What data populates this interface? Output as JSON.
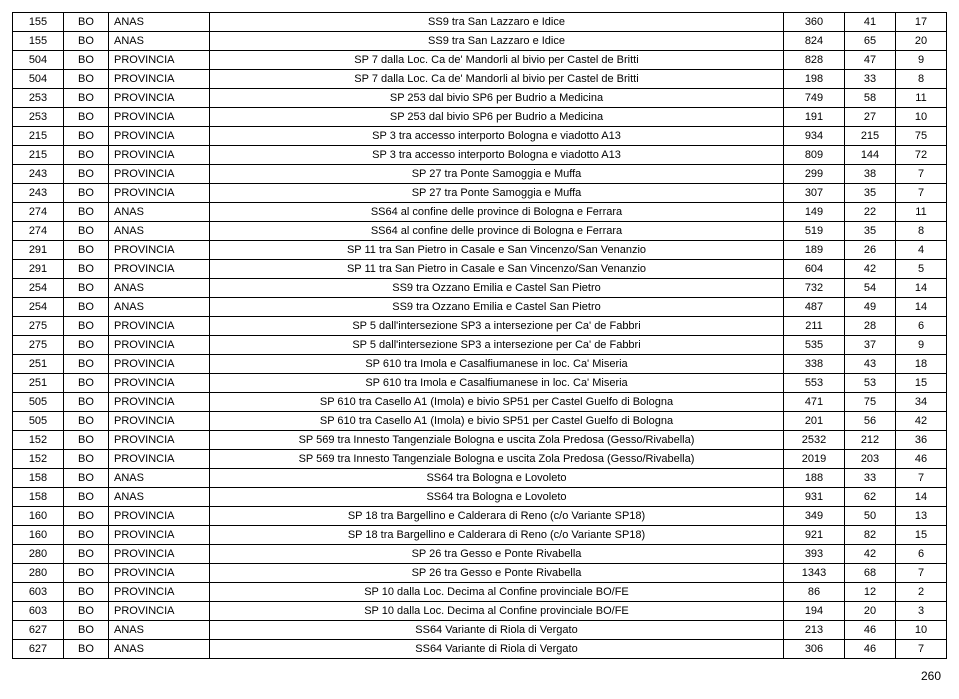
{
  "page_number": "260",
  "rows": [
    [
      "155",
      "BO",
      "ANAS",
      "SS9 tra San Lazzaro e Idice",
      "360",
      "41",
      "17"
    ],
    [
      "155",
      "BO",
      "ANAS",
      "SS9 tra San Lazzaro e Idice",
      "824",
      "65",
      "20"
    ],
    [
      "504",
      "BO",
      "PROVINCIA",
      "SP 7 dalla Loc. Ca de' Mandorli al bivio per Castel de Britti",
      "828",
      "47",
      "9"
    ],
    [
      "504",
      "BO",
      "PROVINCIA",
      "SP 7 dalla Loc. Ca de' Mandorli al bivio per Castel de Britti",
      "198",
      "33",
      "8"
    ],
    [
      "253",
      "BO",
      "PROVINCIA",
      "SP 253 dal bivio SP6 per Budrio a Medicina",
      "749",
      "58",
      "11"
    ],
    [
      "253",
      "BO",
      "PROVINCIA",
      "SP 253 dal bivio SP6 per Budrio a Medicina",
      "191",
      "27",
      "10"
    ],
    [
      "215",
      "BO",
      "PROVINCIA",
      "SP 3 tra accesso interporto Bologna e viadotto A13",
      "934",
      "215",
      "75"
    ],
    [
      "215",
      "BO",
      "PROVINCIA",
      "SP 3 tra accesso interporto Bologna e viadotto A13",
      "809",
      "144",
      "72"
    ],
    [
      "243",
      "BO",
      "PROVINCIA",
      "SP 27 tra Ponte Samoggia e Muffa",
      "299",
      "38",
      "7"
    ],
    [
      "243",
      "BO",
      "PROVINCIA",
      "SP 27 tra Ponte Samoggia e Muffa",
      "307",
      "35",
      "7"
    ],
    [
      "274",
      "BO",
      "ANAS",
      "SS64 al confine delle province di Bologna e Ferrara",
      "149",
      "22",
      "11"
    ],
    [
      "274",
      "BO",
      "ANAS",
      "SS64 al confine delle province di Bologna e Ferrara",
      "519",
      "35",
      "8"
    ],
    [
      "291",
      "BO",
      "PROVINCIA",
      "SP 11 tra San Pietro in Casale e San Vincenzo/San Venanzio",
      "189",
      "26",
      "4"
    ],
    [
      "291",
      "BO",
      "PROVINCIA",
      "SP 11 tra San Pietro in Casale e San Vincenzo/San Venanzio",
      "604",
      "42",
      "5"
    ],
    [
      "254",
      "BO",
      "ANAS",
      "SS9 tra Ozzano Emilia e Castel San Pietro",
      "732",
      "54",
      "14"
    ],
    [
      "254",
      "BO",
      "ANAS",
      "SS9 tra Ozzano Emilia e Castel San Pietro",
      "487",
      "49",
      "14"
    ],
    [
      "275",
      "BO",
      "PROVINCIA",
      "SP 5 dall'intersezione SP3 a intersezione per Ca' de Fabbri",
      "211",
      "28",
      "6"
    ],
    [
      "275",
      "BO",
      "PROVINCIA",
      "SP 5 dall'intersezione SP3 a intersezione per Ca' de Fabbri",
      "535",
      "37",
      "9"
    ],
    [
      "251",
      "BO",
      "PROVINCIA",
      "SP 610 tra Imola e Casalfiumanese in loc. Ca' Miseria",
      "338",
      "43",
      "18"
    ],
    [
      "251",
      "BO",
      "PROVINCIA",
      "SP 610 tra Imola e Casalfiumanese in loc. Ca' Miseria",
      "553",
      "53",
      "15"
    ],
    [
      "505",
      "BO",
      "PROVINCIA",
      "SP 610 tra Casello A1 (Imola) e bivio SP51 per Castel Guelfo di Bologna",
      "471",
      "75",
      "34"
    ],
    [
      "505",
      "BO",
      "PROVINCIA",
      "SP 610 tra Casello A1 (Imola) e bivio SP51 per Castel Guelfo di Bologna",
      "201",
      "56",
      "42"
    ],
    [
      "152",
      "BO",
      "PROVINCIA",
      "SP 569 tra Innesto Tangenziale Bologna e uscita Zola Predosa (Gesso/Rivabella)",
      "2532",
      "212",
      "36"
    ],
    [
      "152",
      "BO",
      "PROVINCIA",
      "SP 569 tra Innesto Tangenziale Bologna e uscita Zola Predosa (Gesso/Rivabella)",
      "2019",
      "203",
      "46"
    ],
    [
      "158",
      "BO",
      "ANAS",
      "SS64 tra Bologna e Lovoleto",
      "188",
      "33",
      "7"
    ],
    [
      "158",
      "BO",
      "ANAS",
      "SS64 tra Bologna e Lovoleto",
      "931",
      "62",
      "14"
    ],
    [
      "160",
      "BO",
      "PROVINCIA",
      "SP 18 tra Bargellino e Calderara di Reno (c/o Variante SP18)",
      "349",
      "50",
      "13"
    ],
    [
      "160",
      "BO",
      "PROVINCIA",
      "SP 18 tra Bargellino e Calderara di Reno (c/o Variante SP18)",
      "921",
      "82",
      "15"
    ],
    [
      "280",
      "BO",
      "PROVINCIA",
      "SP 26 tra Gesso e Ponte Rivabella",
      "393",
      "42",
      "6"
    ],
    [
      "280",
      "BO",
      "PROVINCIA",
      "SP 26 tra Gesso e Ponte Rivabella",
      "1343",
      "68",
      "7"
    ],
    [
      "603",
      "BO",
      "PROVINCIA",
      "SP 10 dalla Loc. Decima al Confine provinciale BO/FE",
      "86",
      "12",
      "2"
    ],
    [
      "603",
      "BO",
      "PROVINCIA",
      "SP 10 dalla Loc. Decima al Confine provinciale BO/FE",
      "194",
      "20",
      "3"
    ],
    [
      "627",
      "BO",
      "ANAS",
      "SS64 Variante di Riola di Vergato",
      "213",
      "46",
      "10"
    ],
    [
      "627",
      "BO",
      "ANAS",
      "SS64 Variante di Riola di Vergato",
      "306",
      "46",
      "7"
    ]
  ]
}
